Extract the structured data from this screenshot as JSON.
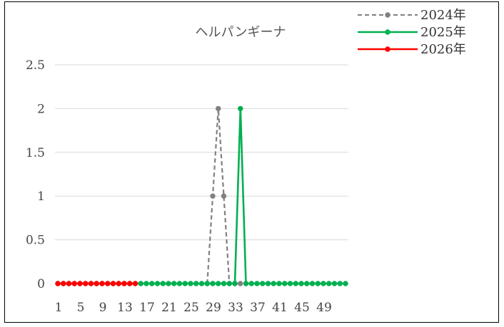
{
  "chart_data": {
    "type": "line",
    "title": "ヘルパンギーナ",
    "xlabel": "",
    "ylabel": "",
    "ylim": [
      0,
      2.5
    ],
    "yticks": [
      "0",
      "0.5",
      "1",
      "1.5",
      "2",
      "2.5"
    ],
    "xtick_labels": [
      "1",
      "5",
      "9",
      "13",
      "17",
      "21",
      "25",
      "29",
      "33",
      "37",
      "41",
      "45",
      "49"
    ],
    "x": [
      1,
      2,
      3,
      4,
      5,
      6,
      7,
      8,
      9,
      10,
      11,
      12,
      13,
      14,
      15,
      16,
      17,
      18,
      19,
      20,
      21,
      22,
      23,
      24,
      25,
      26,
      27,
      28,
      29,
      30,
      31,
      32,
      33,
      34,
      35,
      36,
      37,
      38,
      39,
      40,
      41,
      42,
      43,
      44,
      45,
      46,
      47,
      48,
      49,
      50,
      51,
      52,
      53
    ],
    "grid": true,
    "legend_position": "top-right",
    "series": [
      {
        "name": "2024年",
        "color": "#808080",
        "dashed": true,
        "x": [
          28,
          29,
          30,
          31,
          32,
          33,
          34
        ],
        "values": [
          0,
          1,
          2,
          1,
          0,
          0,
          0
        ]
      },
      {
        "name": "2025年",
        "color": "#00B050",
        "dashed": false,
        "x": [
          1,
          2,
          3,
          4,
          5,
          6,
          7,
          8,
          9,
          10,
          11,
          12,
          13,
          14,
          15,
          16,
          17,
          18,
          19,
          20,
          21,
          22,
          23,
          24,
          25,
          26,
          27,
          28,
          29,
          30,
          31,
          32,
          33,
          34,
          35,
          36,
          37,
          38,
          39,
          40,
          41,
          42,
          43,
          44,
          45,
          46,
          47,
          48,
          49,
          50,
          51,
          52,
          53
        ],
        "values": [
          0,
          0,
          0,
          0,
          0,
          0,
          0,
          0,
          0,
          0,
          0,
          0,
          0,
          0,
          0,
          0,
          0,
          0,
          0,
          0,
          0,
          0,
          0,
          0,
          0,
          0,
          0,
          0,
          0,
          0,
          0,
          0,
          0,
          2,
          0,
          0,
          0,
          0,
          0,
          0,
          0,
          0,
          0,
          0,
          0,
          0,
          0,
          0,
          0,
          0,
          0,
          0,
          0
        ]
      },
      {
        "name": "2026年",
        "color": "#FF0000",
        "dashed": false,
        "x": [
          1,
          2,
          3,
          4,
          5,
          6,
          7,
          8,
          9,
          10,
          11,
          12,
          13,
          14,
          15
        ],
        "values": [
          0,
          0,
          0,
          0,
          0,
          0,
          0,
          0,
          0,
          0,
          0,
          0,
          0,
          0,
          0
        ]
      }
    ]
  }
}
